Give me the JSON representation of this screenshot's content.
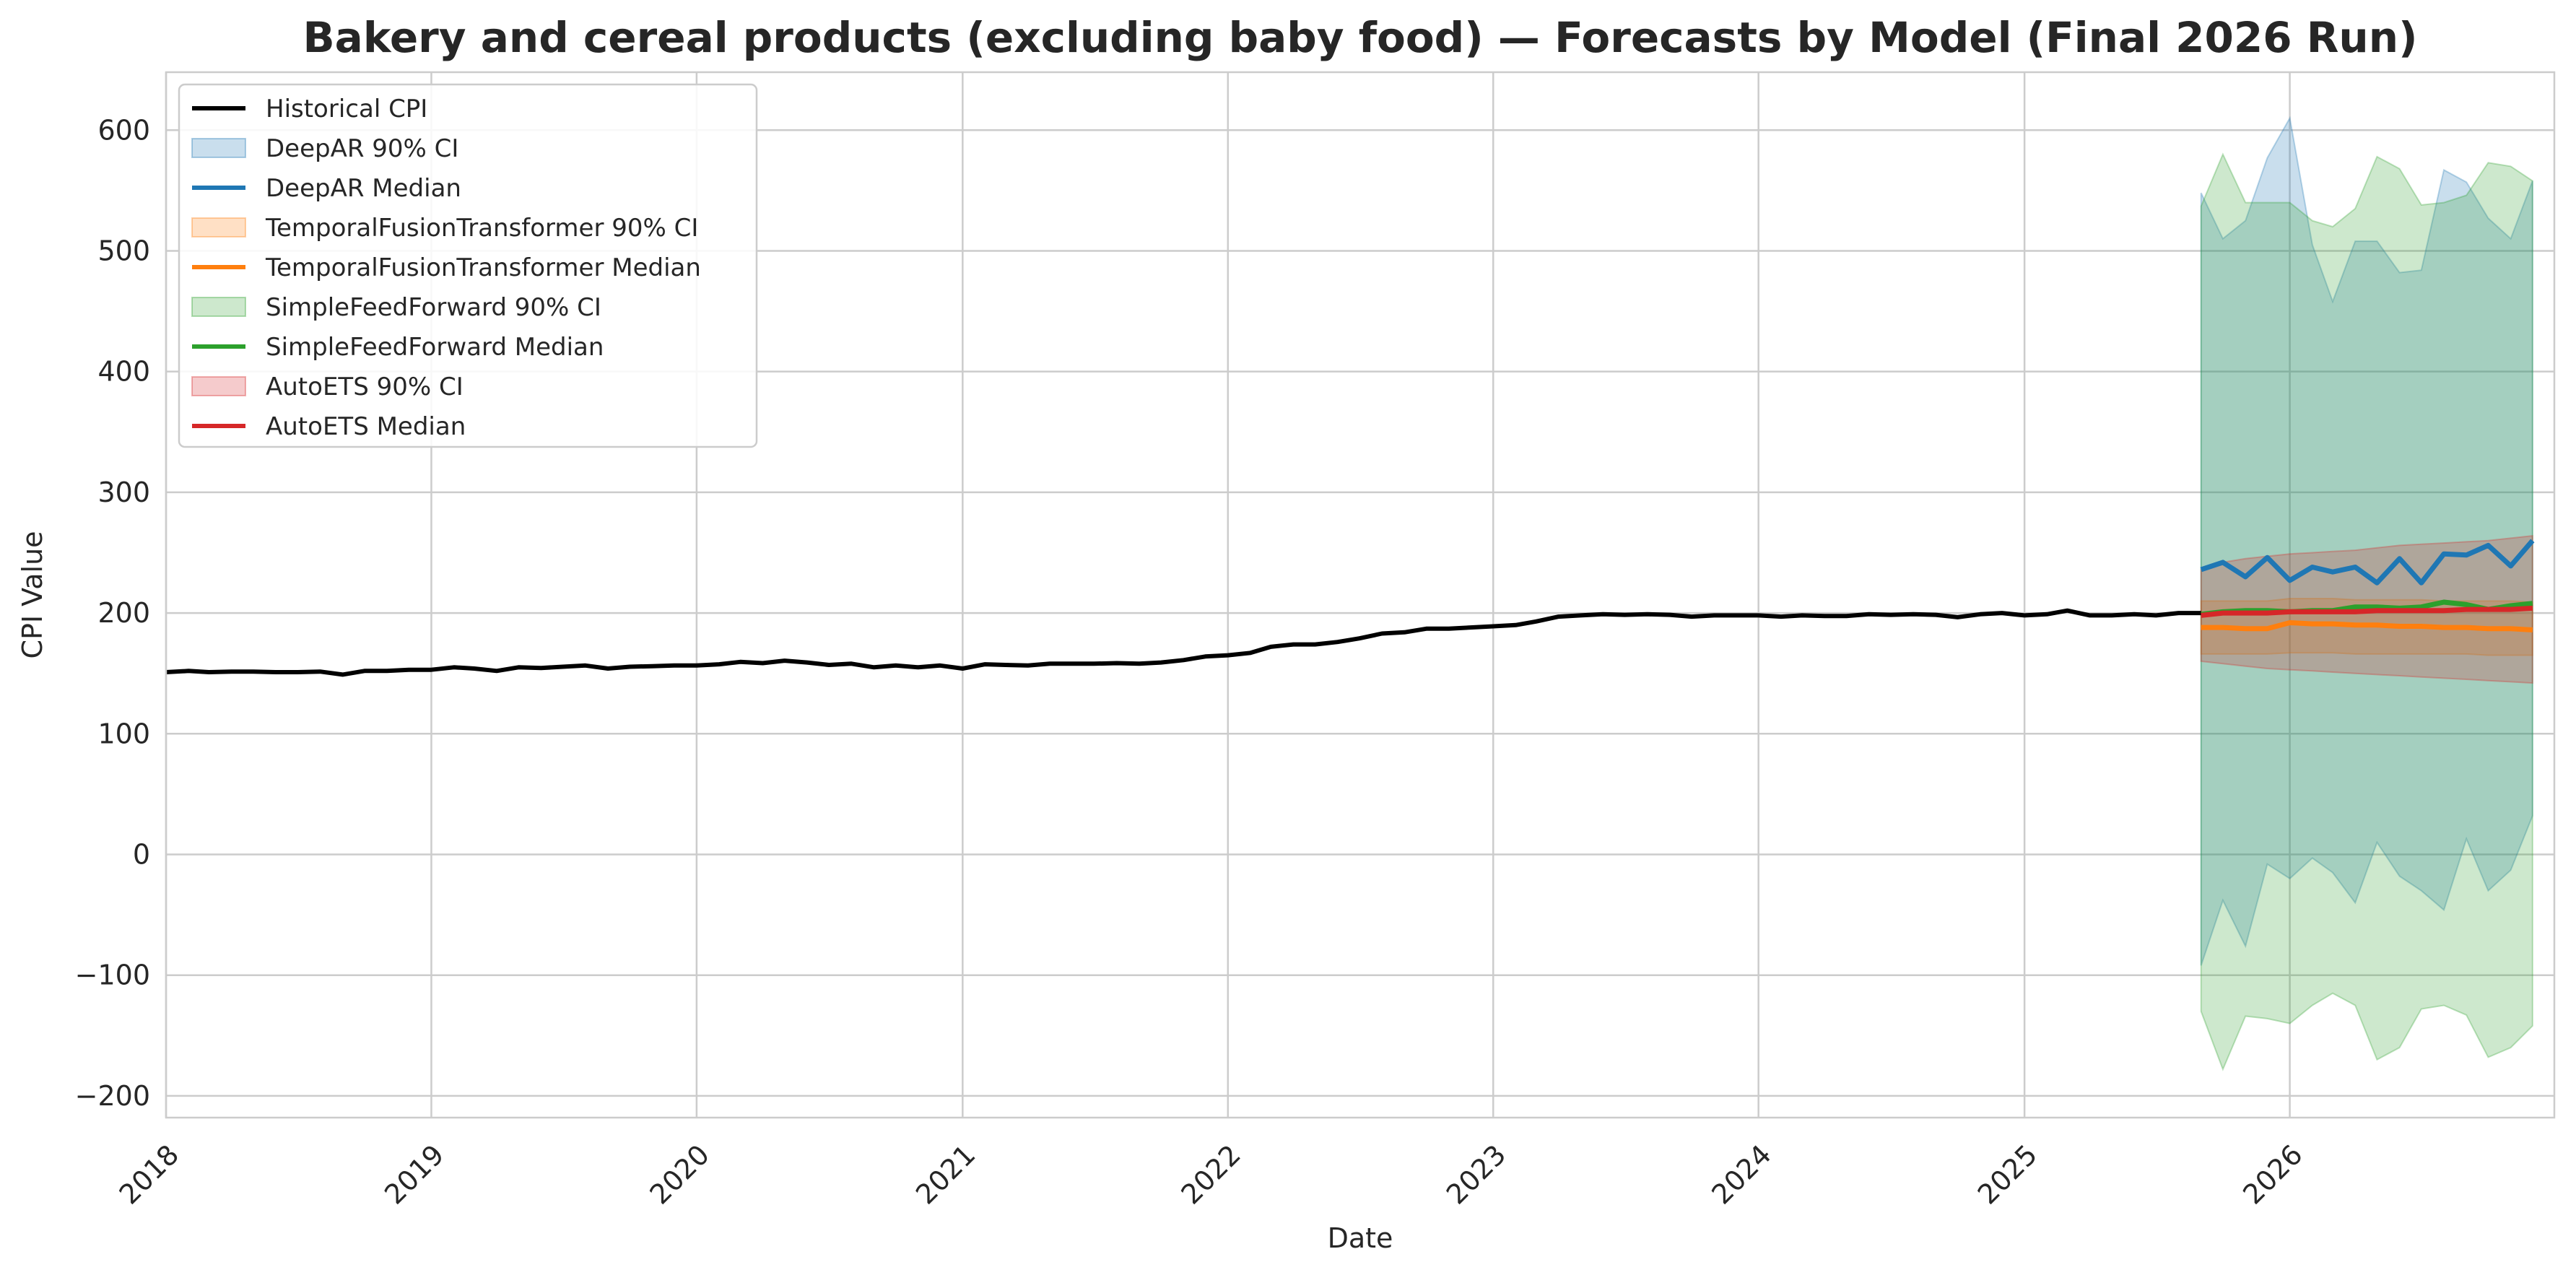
{
  "chart_data": {
    "type": "line",
    "title": "Bakery and cereal products (excluding baby food) — Forecasts by Model (Final 2026 Run)",
    "xlabel": "Date",
    "ylabel": "CPI Value",
    "xlim": [
      "2018-01-01",
      "2026-12-31"
    ],
    "ylim": [
      -218,
      648
    ],
    "x_ticks": [
      "2018",
      "2019",
      "2020",
      "2021",
      "2022",
      "2023",
      "2024",
      "2025",
      "2026"
    ],
    "y_ticks": [
      -200,
      -100,
      0,
      100,
      200,
      300,
      400,
      500,
      600
    ],
    "y_tick_labels": [
      "−200",
      "−100",
      "0",
      "100",
      "200",
      "300",
      "400",
      "500",
      "600"
    ],
    "grid": true,
    "legend_position": "top-left",
    "legend": [
      {
        "label": "Historical CPI",
        "kind": "line",
        "color": "#000000"
      },
      {
        "label": "DeepAR 90% CI",
        "kind": "band",
        "color": "#1f77b4"
      },
      {
        "label": "DeepAR Median",
        "kind": "line",
        "color": "#1f77b4"
      },
      {
        "label": "TemporalFusionTransformer 90% CI",
        "kind": "band",
        "color": "#ff7f0e"
      },
      {
        "label": "TemporalFusionTransformer Median",
        "kind": "line",
        "color": "#ff7f0e"
      },
      {
        "label": "SimpleFeedForward 90% CI",
        "kind": "band",
        "color": "#2ca02c"
      },
      {
        "label": "SimpleFeedForward Median",
        "kind": "line",
        "color": "#2ca02c"
      },
      {
        "label": "AutoETS 90% CI",
        "kind": "band",
        "color": "#d62728"
      },
      {
        "label": "AutoETS Median",
        "kind": "line",
        "color": "#d62728"
      }
    ],
    "historical": {
      "name": "Historical CPI",
      "color": "#000000",
      "start": "2018-01",
      "values": [
        151,
        152,
        151,
        151.5,
        151.5,
        151,
        151,
        151.5,
        149,
        152,
        152,
        153,
        153,
        155,
        154,
        152,
        155,
        154.5,
        155.5,
        156.5,
        154,
        155.5,
        156,
        156.5,
        156.5,
        157.5,
        159.5,
        158.5,
        160.5,
        159,
        157,
        158,
        155,
        156.5,
        155,
        156.5,
        154,
        157.5,
        157,
        156.5,
        158,
        158,
        158,
        158.5,
        158,
        159,
        161,
        164,
        165,
        167,
        172,
        174,
        174,
        176,
        179,
        183,
        184,
        187,
        187,
        188,
        189,
        190,
        193,
        197,
        198,
        199,
        198.5,
        199,
        198.5,
        197,
        198,
        198,
        198,
        197,
        198,
        197.5,
        197.5,
        199,
        198.5,
        199,
        198.5,
        196.5,
        199,
        200,
        198,
        199,
        202,
        198,
        198,
        199,
        198,
        200,
        200
      ]
    },
    "forecast_start": "2025-09",
    "series": [
      {
        "name": "DeepAR",
        "color": "#1f77b4",
        "median": [
          236,
          242,
          230,
          246,
          227,
          238,
          234,
          238,
          225,
          245,
          225,
          249,
          248,
          256,
          239,
          260
        ],
        "lower": [
          -92,
          -38,
          -76,
          -8,
          -20,
          -3,
          -15,
          -40,
          10,
          -18,
          -30,
          -46,
          13,
          -30,
          -13,
          32
        ],
        "upper": [
          548,
          510,
          525,
          577,
          610,
          505,
          458,
          508,
          508,
          482,
          484,
          567,
          557,
          527,
          510,
          558
        ]
      },
      {
        "name": "TemporalFusionTransformer",
        "color": "#ff7f0e",
        "median": [
          188,
          188,
          187,
          187,
          192,
          191,
          191,
          190,
          190,
          189,
          189,
          188,
          188,
          187,
          187,
          186
        ],
        "lower": [
          166,
          166,
          166,
          166,
          167,
          167,
          167,
          166,
          166,
          166,
          166,
          166,
          166,
          165,
          165,
          165
        ],
        "upper": [
          210,
          210,
          210,
          210,
          212,
          212,
          212,
          211,
          211,
          211,
          211,
          210,
          210,
          210,
          210,
          209
        ]
      },
      {
        "name": "SimpleFeedForward",
        "color": "#2ca02c",
        "median": [
          199,
          201,
          202,
          202,
          201,
          202,
          202,
          205,
          205,
          204,
          205,
          209,
          207,
          203,
          206,
          208
        ],
        "lower": [
          -130,
          -178,
          -134,
          -136,
          -140,
          -125,
          -115,
          -125,
          -170,
          -160,
          -128,
          -125,
          -133,
          -168,
          -160,
          -142
        ],
        "upper": [
          537,
          580,
          540,
          540,
          540,
          525,
          520,
          535,
          578,
          568,
          538,
          540,
          546,
          573,
          570,
          558
        ]
      },
      {
        "name": "AutoETS",
        "color": "#d62728",
        "median": [
          198,
          200,
          200,
          200,
          201,
          201,
          201,
          201,
          202,
          202,
          202,
          202,
          203,
          203,
          203,
          204
        ],
        "lower": [
          160,
          158,
          156,
          154,
          153,
          152,
          151,
          150,
          149,
          148,
          147,
          146,
          145,
          144,
          143,
          142
        ],
        "upper": [
          236,
          242,
          245,
          247,
          249,
          250,
          251,
          252,
          254,
          256,
          257,
          258,
          259,
          260,
          262,
          264
        ]
      }
    ]
  }
}
